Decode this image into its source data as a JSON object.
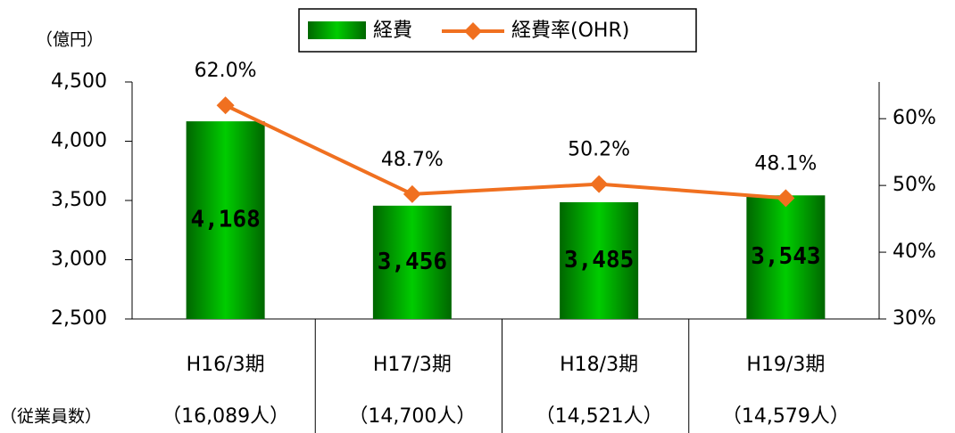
{
  "chart_data": {
    "type": "bar",
    "y_label": "（億円）",
    "row_label": "（従業員数）",
    "categories": [
      "H16/3期",
      "H17/3期",
      "H18/3期",
      "H19/3期"
    ],
    "employees": [
      "（16,089人）",
      "（14,700人）",
      "（14,521人）",
      "（14,579人）"
    ],
    "series": [
      {
        "name": "経費",
        "color": "#00cc00",
        "values": [
          4168,
          3456,
          3485,
          3543
        ],
        "value_labels": [
          "4,168",
          "3,456",
          "3,485",
          "3,543"
        ]
      },
      {
        "name": "経費率(OHR)",
        "type": "line",
        "axis": "y2",
        "color": "#f07020",
        "values": [
          62.0,
          48.7,
          50.2,
          48.1
        ],
        "value_labels": [
          "62.0%",
          "48.7%",
          "50.2%",
          "48.1%"
        ]
      }
    ],
    "ylim": [
      2500,
      4500
    ],
    "yticks": [
      {
        "value": 2500,
        "label": "2,500"
      },
      {
        "value": 3000,
        "label": "3,000"
      },
      {
        "value": 3500,
        "label": "3,500"
      },
      {
        "value": 4000,
        "label": "4,000"
      },
      {
        "value": 4500,
        "label": "4,500"
      }
    ],
    "y2lim": [
      30,
      65.5
    ],
    "y2ticks": [
      {
        "value": 30,
        "label": "30%"
      },
      {
        "value": 40,
        "label": "40%"
      },
      {
        "value": 50,
        "label": "50%"
      },
      {
        "value": 60,
        "label": "60%"
      }
    ],
    "legend": "top"
  }
}
